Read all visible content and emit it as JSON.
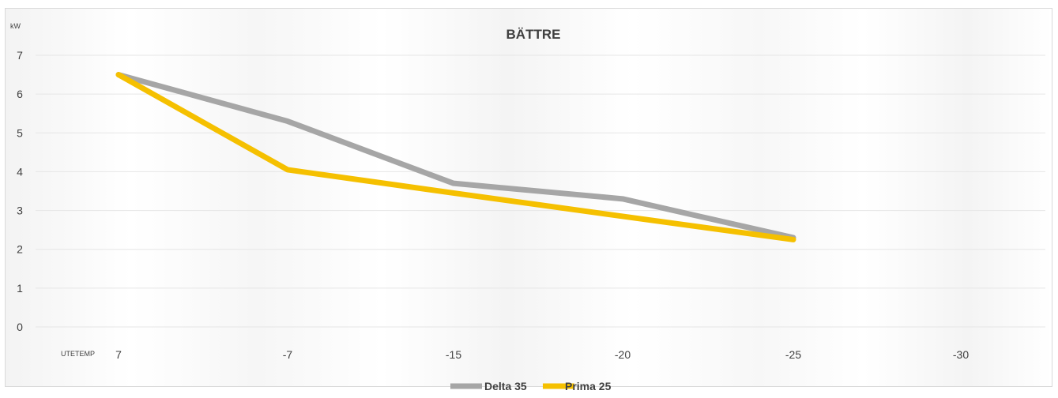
{
  "chart_data": {
    "type": "line",
    "title": "BÄTTRE",
    "ylabel": "kW",
    "xlabel": "UTETEMP",
    "categories": [
      "7",
      "-7",
      "-15",
      "-20",
      "-25",
      "-30"
    ],
    "ylim": [
      0,
      7
    ],
    "yticks": [
      0,
      1,
      2,
      3,
      4,
      5,
      6,
      7
    ],
    "grid": true,
    "legend": "bottom",
    "series": [
      {
        "name": "Delta 35",
        "color": "#a6a6a6",
        "values": [
          6.5,
          5.3,
          3.7,
          3.3,
          2.3,
          null
        ]
      },
      {
        "name": "Prima 25",
        "color": "#f5c000",
        "values": [
          6.5,
          4.05,
          3.45,
          2.85,
          2.25,
          null
        ]
      }
    ]
  }
}
